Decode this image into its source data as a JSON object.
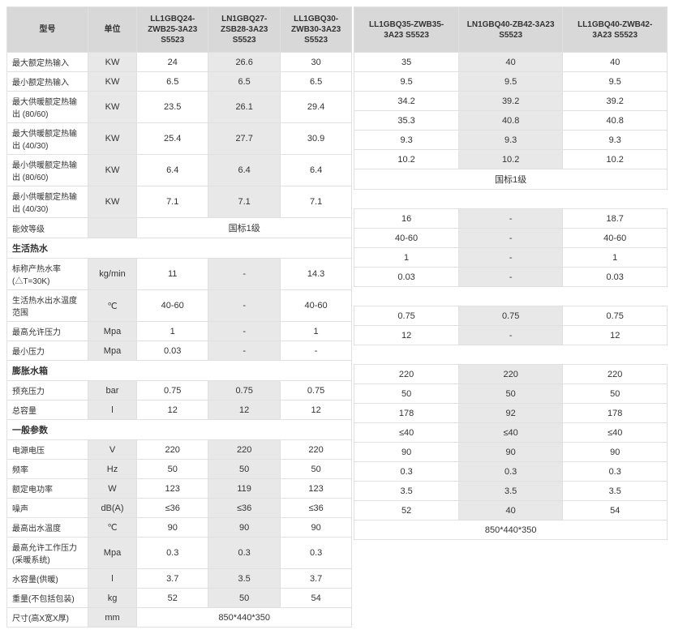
{
  "header": {
    "model_label": "型号",
    "unit_label": "单位",
    "models": [
      "LL1GBQ24-ZWB25-3A23 S5523",
      "LN1GBQ27-ZSB28-3A23 S5523",
      "LL1GBQ30-ZWB30-3A23 S5523",
      "LL1GBQ35-ZWB35-3A23 S5523",
      "LN1GBQ40-ZB42-3A23 S5523",
      "LL1GBQ40-ZWB42-3A23 S5523"
    ]
  },
  "rows_top": [
    {
      "l": "最大额定热输入",
      "u": "KW",
      "v": [
        "24",
        "26.6",
        "30",
        "35",
        "40",
        "40"
      ]
    },
    {
      "l": "最小额定热输入",
      "u": "KW",
      "v": [
        "6.5",
        "6.5",
        "6.5",
        "9.5",
        "9.5",
        "9.5"
      ]
    },
    {
      "l": "最大供暖额定热输出 (80/60)",
      "u": "KW",
      "v": [
        "23.5",
        "26.1",
        "29.4",
        "34.2",
        "39.2",
        "39.2"
      ]
    },
    {
      "l": "最大供暖额定热输出 (40/30)",
      "u": "KW",
      "v": [
        "25.4",
        "27.7",
        "30.9",
        "35.3",
        "40.8",
        "40.8"
      ]
    },
    {
      "l": "最小供暖额定热输出 (80/60)",
      "u": "KW",
      "v": [
        "6.4",
        "6.4",
        "6.4",
        "9.3",
        "9.3",
        "9.3"
      ]
    },
    {
      "l": "最小供暖额定热输出 (40/30)",
      "u": "KW",
      "v": [
        "7.1",
        "7.1",
        "7.1",
        "10.2",
        "10.2",
        "10.2"
      ]
    }
  ],
  "eff_row": {
    "l": "能效等级",
    "left": "国标1级",
    "right": "国标1级"
  },
  "sec_dhw": "生活热水",
  "rows_dhw": [
    {
      "l": "标称产热水率 (△T=30K)",
      "u": "kg/min",
      "v": [
        "11",
        "-",
        "14.3",
        "16",
        "-",
        "18.7"
      ]
    },
    {
      "l": "生活热水出水温度范围",
      "u": "℃",
      "v": [
        "40-60",
        "-",
        "40-60",
        "40-60",
        "-",
        "40-60"
      ]
    },
    {
      "l": "最高允许压力",
      "u": "Mpa",
      "v": [
        "1",
        "-",
        "1",
        "1",
        "-",
        "1"
      ]
    },
    {
      "l": "最小压力",
      "u": "Mpa",
      "v": [
        "0.03",
        "-",
        "-",
        "0.03",
        "-",
        "0.03"
      ]
    }
  ],
  "sec_exp": "膨胀水箱",
  "rows_exp": [
    {
      "l": "预充压力",
      "u": "bar",
      "v": [
        "0.75",
        "0.75",
        "0.75",
        "0.75",
        "0.75",
        "0.75"
      ]
    },
    {
      "l": "总容量",
      "u": "l",
      "v": [
        "12",
        "12",
        "12",
        "12",
        "-",
        "12"
      ]
    }
  ],
  "sec_gen": "一般参数",
  "rows_gen_left": [
    {
      "l": "电源电压",
      "u": "V",
      "v": [
        "220",
        "220",
        "220"
      ]
    },
    {
      "l": "频率",
      "u": "Hz",
      "v": [
        "50",
        "50",
        "50"
      ]
    },
    {
      "l": "额定电功率",
      "u": "W",
      "v": [
        "123",
        "119",
        "123"
      ]
    },
    {
      "l": "噪声",
      "u": "dB(A)",
      "v": [
        "≤36",
        "≤36",
        "≤36"
      ]
    },
    {
      "l": "最高出水温度",
      "u": "℃",
      "v": [
        "90",
        "90",
        "90"
      ]
    },
    {
      "l": "最高允许工作压力(采暖系统)",
      "u": "Mpa",
      "v": [
        "0.3",
        "0.3",
        "0.3"
      ]
    },
    {
      "l": "水容量(供暖)",
      "u": "l",
      "v": [
        "3.7",
        "3.5",
        "3.7"
      ]
    },
    {
      "l": "重量(不包括包装)",
      "u": "kg",
      "v": [
        "52",
        "50",
        "54"
      ]
    }
  ],
  "rows_gen_right": [
    {
      "v": [
        "220",
        "220",
        "220"
      ]
    },
    {
      "v": [
        "50",
        "50",
        "50"
      ]
    },
    {
      "v": [
        "178",
        "92",
        "178"
      ]
    },
    {
      "v": [
        "≤40",
        "≤40",
        "≤40"
      ]
    },
    {
      "v": [
        "90",
        "90",
        "90"
      ]
    },
    {
      "v": [
        "0.3",
        "0.3",
        "0.3"
      ]
    },
    {
      "v": [
        "3.5",
        "3.5",
        "3.5"
      ]
    },
    {
      "v": [
        "52",
        "40",
        "54"
      ]
    }
  ],
  "dim_row": {
    "l": "尺寸(高X宽X厚)",
    "u": "mm",
    "left": "850*440*350",
    "right": "850*440*350"
  }
}
